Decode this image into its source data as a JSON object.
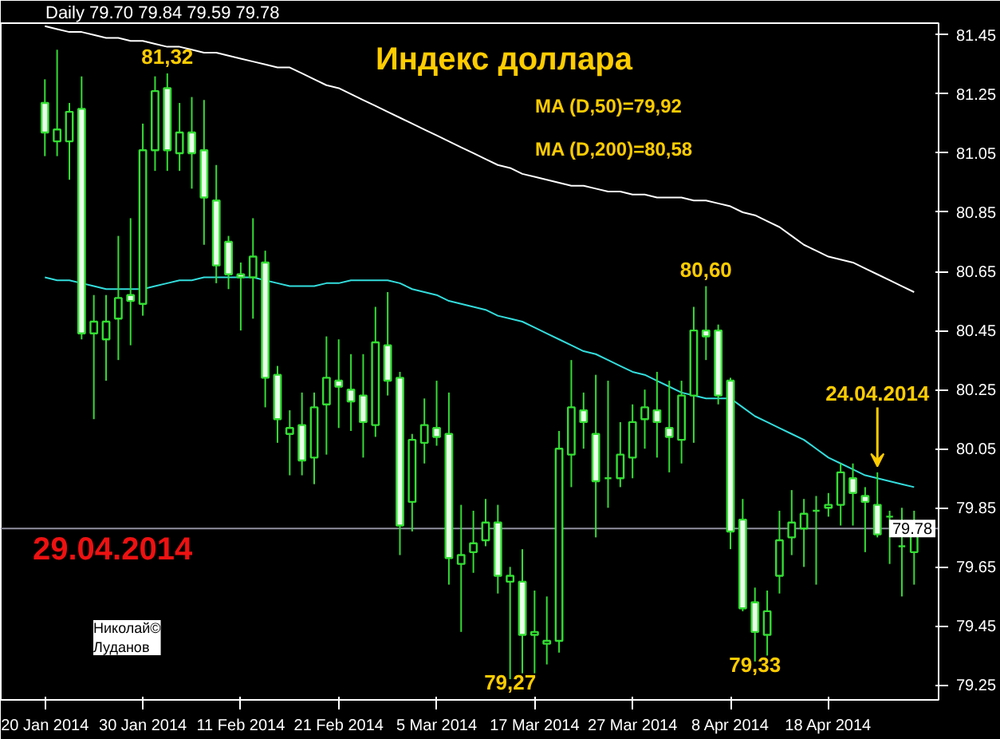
{
  "chart_data": {
    "type": "candlestick",
    "title": "Индекс доллара",
    "categories": [
      "20 Jan 2014",
      null,
      null,
      null,
      null,
      null,
      null,
      null,
      "30 Jan 2014",
      null,
      null,
      null,
      null,
      null,
      null,
      null,
      "11 Feb 2014",
      null,
      null,
      null,
      null,
      null,
      null,
      null,
      "21 Feb 2014",
      null,
      null,
      null,
      null,
      null,
      null,
      null,
      "5 Mar 2014",
      null,
      null,
      null,
      null,
      null,
      null,
      null,
      "17 Mar 2014",
      null,
      null,
      null,
      null,
      null,
      null,
      null,
      "27 Mar 2014",
      null,
      null,
      null,
      null,
      null,
      null,
      null,
      "8 Apr 2014",
      null,
      null,
      null,
      null,
      null,
      null,
      null,
      "18 Apr 2014",
      null,
      null,
      null,
      null,
      null,
      null,
      null
    ],
    "ohlc": [
      [
        81.22,
        81.3,
        81.04,
        81.12
      ],
      [
        81.09,
        81.4,
        81.04,
        81.13
      ],
      [
        81.09,
        81.22,
        80.96,
        81.19
      ],
      [
        81.2,
        81.31,
        80.42,
        80.44
      ],
      [
        80.44,
        80.57,
        80.15,
        80.48
      ],
      [
        80.42,
        80.57,
        80.28,
        80.48
      ],
      [
        80.49,
        80.77,
        80.35,
        80.56
      ],
      [
        80.57,
        80.83,
        80.4,
        80.55
      ],
      [
        80.54,
        81.15,
        80.5,
        81.06
      ],
      [
        81.06,
        81.31,
        80.99,
        81.26
      ],
      [
        81.27,
        81.32,
        80.99,
        81.06
      ],
      [
        81.05,
        81.22,
        80.99,
        81.12
      ],
      [
        81.12,
        81.24,
        80.93,
        81.05
      ],
      [
        81.06,
        81.23,
        80.74,
        80.9
      ],
      [
        80.89,
        81.01,
        80.61,
        80.67
      ],
      [
        80.75,
        80.77,
        80.59,
        80.64
      ],
      [
        80.64,
        80.68,
        80.45,
        80.63
      ],
      [
        80.63,
        80.83,
        80.49,
        80.7
      ],
      [
        80.68,
        80.72,
        80.19,
        80.29
      ],
      [
        80.3,
        80.33,
        80.07,
        80.15
      ],
      [
        80.1,
        80.18,
        79.96,
        80.12
      ],
      [
        80.13,
        80.24,
        79.96,
        80.01
      ],
      [
        80.02,
        80.24,
        79.93,
        80.19
      ],
      [
        80.2,
        80.43,
        80.03,
        80.29
      ],
      [
        80.28,
        80.42,
        80.12,
        80.26
      ],
      [
        80.25,
        80.37,
        80.11,
        80.21
      ],
      [
        80.23,
        80.37,
        80.02,
        80.14
      ],
      [
        80.13,
        80.53,
        80.09,
        80.41
      ],
      [
        80.4,
        80.58,
        80.23,
        80.28
      ],
      [
        80.29,
        80.31,
        79.69,
        79.79
      ],
      [
        79.87,
        80.1,
        79.77,
        80.08
      ],
      [
        80.07,
        80.22,
        80.0,
        80.13
      ],
      [
        80.12,
        80.28,
        80.06,
        80.09
      ],
      [
        80.1,
        80.24,
        79.59,
        79.68
      ],
      [
        79.66,
        79.86,
        79.43,
        79.69
      ],
      [
        79.7,
        79.84,
        79.63,
        79.73
      ],
      [
        79.74,
        79.88,
        79.72,
        79.8
      ],
      [
        79.8,
        79.86,
        79.56,
        79.62
      ],
      [
        79.6,
        79.65,
        79.27,
        79.62
      ],
      [
        79.6,
        79.71,
        79.29,
        79.42
      ],
      [
        79.42,
        79.57,
        79.29,
        79.43
      ],
      [
        79.39,
        79.55,
        79.32,
        79.4
      ],
      [
        79.4,
        80.11,
        79.36,
        80.05
      ],
      [
        80.03,
        80.35,
        79.92,
        80.19
      ],
      [
        80.18,
        80.24,
        80.05,
        80.14
      ],
      [
        80.1,
        80.3,
        79.75,
        79.94
      ],
      [
        79.95,
        80.28,
        79.85,
        79.95
      ],
      [
        79.95,
        80.14,
        79.92,
        80.03
      ],
      [
        80.02,
        80.2,
        79.95,
        80.14
      ],
      [
        80.15,
        80.25,
        80.05,
        80.19
      ],
      [
        80.18,
        80.31,
        80.02,
        80.14
      ],
      [
        80.12,
        80.28,
        79.97,
        80.09
      ],
      [
        80.08,
        80.28,
        80.0,
        80.23
      ],
      [
        80.23,
        80.53,
        80.07,
        80.45
      ],
      [
        80.45,
        80.6,
        80.35,
        80.43
      ],
      [
        80.45,
        80.47,
        80.2,
        80.23
      ],
      [
        80.28,
        80.29,
        79.71,
        79.77
      ],
      [
        79.81,
        79.88,
        79.5,
        79.51
      ],
      [
        79.53,
        79.58,
        79.33,
        79.43
      ],
      [
        79.42,
        79.57,
        79.35,
        79.5
      ],
      [
        79.62,
        79.84,
        79.56,
        79.74
      ],
      [
        79.75,
        79.91,
        79.69,
        79.8
      ],
      [
        79.78,
        79.88,
        79.65,
        79.83
      ],
      [
        79.84,
        79.89,
        79.59,
        79.84
      ],
      [
        79.85,
        79.9,
        79.82,
        79.86
      ],
      [
        79.86,
        80.0,
        79.79,
        79.97
      ],
      [
        79.95,
        80.0,
        79.79,
        79.9
      ],
      [
        79.89,
        79.92,
        79.7,
        79.87
      ],
      [
        79.86,
        79.97,
        79.75,
        79.76
      ],
      [
        79.82,
        79.84,
        79.66,
        79.82
      ],
      [
        79.72,
        79.85,
        79.55,
        79.72
      ],
      [
        79.7,
        79.84,
        79.59,
        79.78
      ]
    ],
    "color": "#33dd33",
    "series": [
      {
        "type": "line",
        "color": "#ffffff",
        "values": [
          81.48,
          81.47,
          81.46,
          81.46,
          81.45,
          81.44,
          81.44,
          81.43,
          81.43,
          81.42,
          81.41,
          81.41,
          81.4,
          81.39,
          81.39,
          81.38,
          81.37,
          81.36,
          81.35,
          81.34,
          81.34,
          81.32,
          81.3,
          81.28,
          81.27,
          81.25,
          81.23,
          81.21,
          81.19,
          81.17,
          81.15,
          81.13,
          81.11,
          81.09,
          81.07,
          81.05,
          81.03,
          81.01,
          81.0,
          80.98,
          80.97,
          80.96,
          80.95,
          80.94,
          80.94,
          80.93,
          80.92,
          80.92,
          80.91,
          80.91,
          80.9,
          80.9,
          80.9,
          80.89,
          80.89,
          80.88,
          80.87,
          80.85,
          80.84,
          80.82,
          80.8,
          80.77,
          80.74,
          80.72,
          80.7,
          80.69,
          80.68,
          80.66,
          80.64,
          80.62,
          80.6,
          80.58
        ]
      },
      {
        "type": "line",
        "color": "#33dddd",
        "values": [
          80.63,
          80.62,
          80.62,
          80.61,
          80.6,
          80.59,
          80.59,
          80.59,
          80.59,
          80.6,
          80.61,
          80.62,
          80.62,
          80.63,
          80.63,
          80.63,
          80.63,
          80.63,
          80.62,
          80.61,
          80.6,
          80.6,
          80.6,
          80.61,
          80.61,
          80.62,
          80.62,
          80.62,
          80.62,
          80.61,
          80.59,
          80.58,
          80.57,
          80.55,
          80.54,
          80.53,
          80.52,
          80.5,
          80.49,
          80.48,
          80.46,
          80.44,
          80.42,
          80.4,
          80.38,
          80.37,
          80.35,
          80.33,
          80.31,
          80.3,
          80.28,
          80.26,
          80.24,
          80.23,
          80.22,
          80.22,
          80.22,
          80.19,
          80.16,
          80.14,
          80.12,
          80.1,
          80.08,
          80.05,
          80.02,
          80.0,
          79.98,
          79.96,
          79.95,
          79.94,
          79.93,
          79.92
        ]
      }
    ],
    "ylim": [
      79.2,
      81.49
    ],
    "yticks": [
      81.45,
      81.25,
      81.05,
      80.85,
      80.65,
      80.45,
      80.25,
      80.05,
      79.85,
      79.65,
      79.45,
      79.25
    ],
    "ref_lines": [
      {
        "axis": "y",
        "value": 79.78,
        "label": "79.78",
        "color": "#9090a0"
      }
    ],
    "annotations": [
      "Daily 79.70 79.84 79.59 79.78",
      "MA (D,50)=79,92",
      "MA (D,200)=80,58",
      "29.04.2014",
      "Николай© Луданов",
      {
        "text": "81,32",
        "y": 81.32
      },
      {
        "text": "80,60",
        "y": 80.6
      },
      {
        "text": "79,27",
        "y": 79.27
      },
      {
        "text": "79,33",
        "y": 79.33
      },
      {
        "text": "24.04.2014",
        "y": 79.99
      }
    ]
  }
}
